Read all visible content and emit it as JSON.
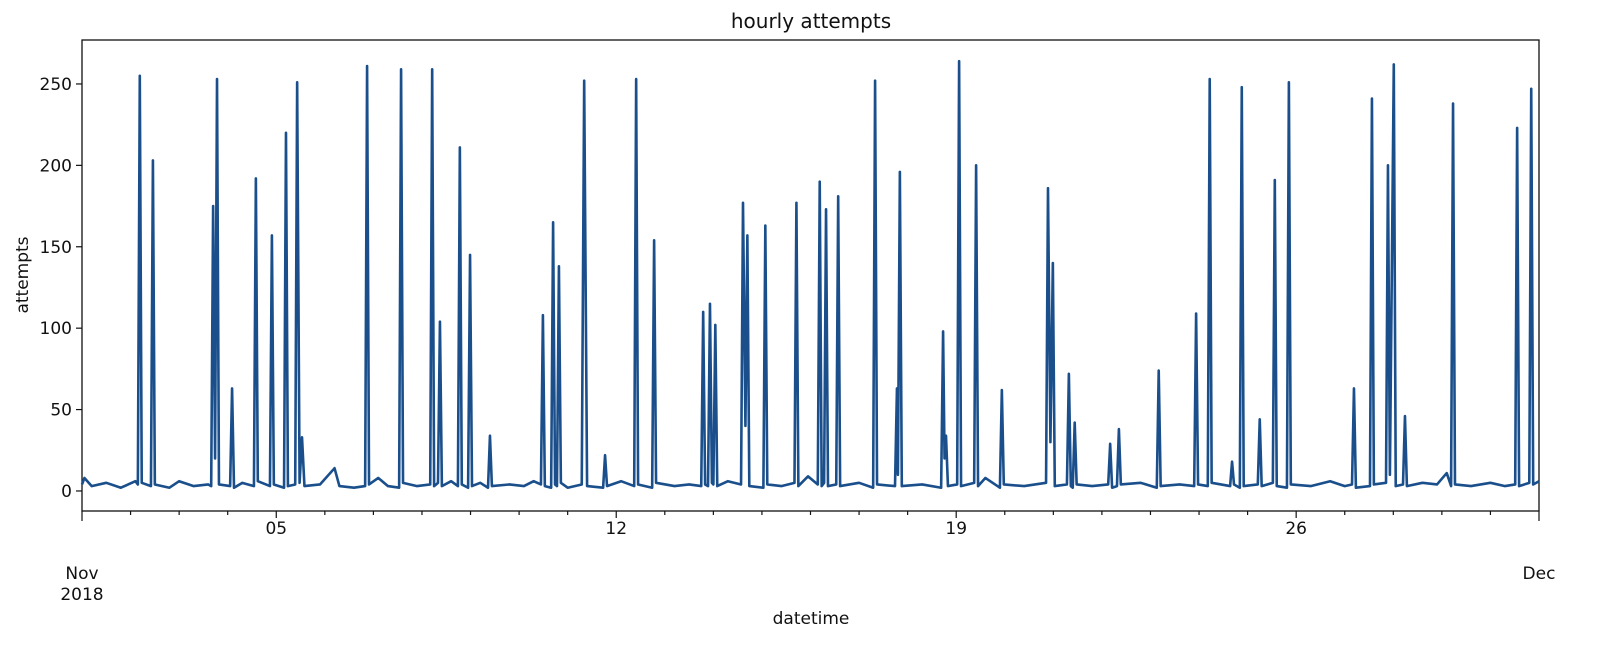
{
  "chart_data": {
    "type": "line",
    "title": "hourly attempts",
    "x_label": "datetime",
    "y_label": "attempts",
    "xlim": [
      1,
      31
    ],
    "ylim": [
      -12.3,
      277
    ],
    "xticks": [
      {
        "value": 1,
        "label": "Nov\n2018"
      },
      {
        "value": 5,
        "label": "05"
      },
      {
        "value": 12,
        "label": "12"
      },
      {
        "value": 19,
        "label": "19"
      },
      {
        "value": 26,
        "label": "26"
      },
      {
        "value": 31,
        "label": "Dec"
      }
    ],
    "minor_xticks": [
      2,
      3,
      4,
      6,
      7,
      8,
      9,
      10,
      11,
      13,
      14,
      15,
      16,
      17,
      18,
      20,
      21,
      22,
      23,
      24,
      25,
      27,
      28,
      29,
      30
    ],
    "yticks": [
      0,
      50,
      100,
      150,
      200,
      250
    ],
    "series": [
      {
        "name": "attempts",
        "color": "#1a4f8b",
        "x": [
          1.0,
          1.05,
          1.2,
          1.5,
          1.8,
          2.1,
          2.15,
          2.19,
          2.23,
          2.42,
          2.46,
          2.5,
          2.8,
          3.0,
          3.3,
          3.6,
          3.66,
          3.7,
          3.74,
          3.78,
          3.82,
          4.05,
          4.09,
          4.13,
          4.3,
          4.54,
          4.58,
          4.62,
          4.87,
          4.91,
          4.95,
          5.16,
          5.2,
          5.24,
          5.39,
          5.43,
          5.48,
          5.53,
          5.58,
          5.9,
          6.2,
          6.3,
          6.6,
          6.83,
          6.87,
          6.91,
          7.1,
          7.3,
          7.53,
          7.57,
          7.61,
          7.9,
          8.17,
          8.21,
          8.25,
          8.33,
          8.37,
          8.41,
          8.6,
          8.74,
          8.78,
          8.82,
          8.95,
          8.99,
          9.03,
          9.2,
          9.36,
          9.4,
          9.44,
          9.8,
          10.1,
          10.3,
          10.45,
          10.49,
          10.53,
          10.66,
          10.7,
          10.74,
          10.78,
          10.82,
          10.86,
          11.0,
          11.29,
          11.34,
          11.4,
          11.73,
          11.77,
          11.81,
          12.1,
          12.37,
          12.41,
          12.45,
          12.74,
          12.78,
          12.82,
          13.2,
          13.5,
          13.75,
          13.79,
          13.83,
          13.89,
          13.93,
          13.97,
          14.0,
          14.04,
          14.08,
          14.3,
          14.57,
          14.61,
          14.66,
          14.7,
          14.74,
          15.03,
          15.07,
          15.11,
          15.4,
          15.67,
          15.71,
          15.75,
          15.95,
          16.15,
          16.19,
          16.23,
          16.28,
          16.32,
          16.36,
          16.53,
          16.57,
          16.61,
          17.0,
          17.29,
          17.33,
          17.37,
          17.74,
          17.78,
          17.8,
          17.84,
          17.88,
          18.3,
          18.69,
          18.73,
          18.76,
          18.79,
          18.83,
          19.02,
          19.06,
          19.1,
          19.37,
          19.41,
          19.45,
          19.6,
          19.9,
          19.94,
          19.98,
          20.4,
          20.85,
          20.89,
          20.94,
          20.99,
          21.03,
          21.28,
          21.32,
          21.36,
          21.4,
          21.44,
          21.48,
          21.8,
          22.13,
          22.17,
          22.21,
          22.31,
          22.35,
          22.39,
          22.8,
          23.13,
          23.17,
          23.21,
          23.6,
          23.9,
          23.94,
          23.98,
          24.18,
          24.22,
          24.26,
          24.64,
          24.68,
          24.72,
          24.84,
          24.88,
          24.92,
          25.21,
          25.25,
          25.29,
          25.52,
          25.56,
          25.6,
          25.81,
          25.85,
          25.89,
          26.3,
          26.7,
          27.0,
          27.15,
          27.19,
          27.23,
          27.52,
          27.56,
          27.6,
          27.85,
          27.89,
          27.93,
          28.01,
          28.05,
          28.2,
          28.24,
          28.28,
          28.6,
          28.9,
          29.1,
          29.19,
          29.23,
          29.27,
          29.6,
          30.0,
          30.3,
          30.51,
          30.55,
          30.59,
          30.8,
          30.84,
          30.88,
          31.0
        ],
        "values": [
          4,
          8,
          3,
          5,
          2,
          6,
          4,
          255,
          5,
          3,
          203,
          4,
          2,
          6,
          3,
          4,
          3,
          175,
          20,
          253,
          4,
          3,
          63,
          2,
          5,
          3,
          192,
          6,
          3,
          157,
          4,
          2,
          220,
          3,
          4,
          251,
          5,
          33,
          3,
          4,
          14,
          3,
          2,
          3,
          261,
          4,
          8,
          3,
          2,
          259,
          5,
          3,
          4,
          259,
          3,
          5,
          104,
          3,
          6,
          3,
          211,
          4,
          2,
          145,
          3,
          5,
          2,
          34,
          3,
          4,
          3,
          6,
          4,
          108,
          3,
          2,
          165,
          4,
          3,
          138,
          5,
          2,
          4,
          252,
          3,
          2,
          22,
          3,
          6,
          3,
          253,
          4,
          2,
          154,
          5,
          3,
          4,
          3,
          110,
          4,
          3,
          115,
          5,
          4,
          102,
          3,
          6,
          4,
          177,
          40,
          157,
          3,
          2,
          163,
          4,
          3,
          5,
          177,
          3,
          9,
          4,
          190,
          3,
          5,
          173,
          3,
          4,
          181,
          3,
          5,
          2,
          252,
          4,
          3,
          63,
          10,
          196,
          3,
          4,
          2,
          98,
          20,
          34,
          3,
          4,
          264,
          3,
          5,
          200,
          3,
          8,
          2,
          62,
          4,
          3,
          5,
          186,
          30,
          140,
          3,
          4,
          72,
          3,
          2,
          42,
          4,
          3,
          4,
          29,
          2,
          3,
          38,
          4,
          5,
          2,
          74,
          3,
          4,
          3,
          109,
          4,
          3,
          253,
          5,
          3,
          18,
          4,
          2,
          248,
          3,
          4,
          44,
          3,
          5,
          191,
          3,
          2,
          251,
          4,
          3,
          6,
          3,
          4,
          63,
          2,
          3,
          241,
          4,
          5,
          200,
          10,
          262,
          3,
          4,
          46,
          3,
          5,
          4,
          11,
          3,
          238,
          4,
          3,
          5,
          3,
          4,
          223,
          3,
          5,
          247,
          4,
          6
        ]
      }
    ]
  }
}
